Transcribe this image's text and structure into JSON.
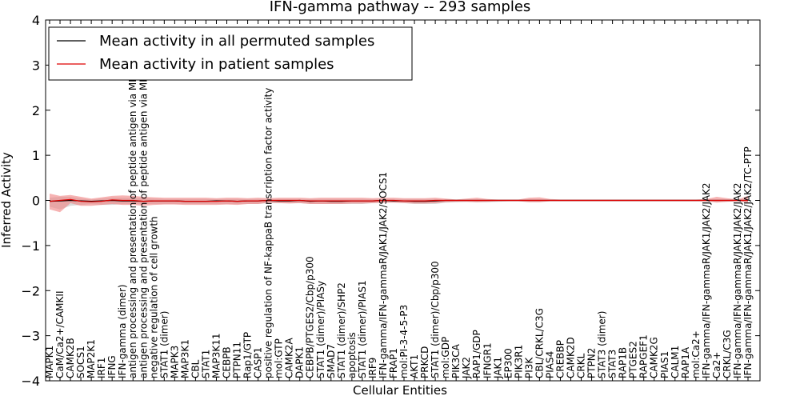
{
  "chart_data": {
    "type": "line",
    "title": "IFN-gamma pathway -- 293 samples",
    "xlabel": "Cellular Entities",
    "ylabel": "Inferred Activity",
    "ylim": [
      -4,
      4
    ],
    "yticks": [
      -4,
      -3,
      -2,
      -1,
      0,
      1,
      2,
      3,
      4
    ],
    "ytick_labels": [
      "−4",
      "−3",
      "−2",
      "−1",
      "0",
      "1",
      "2",
      "3",
      "4"
    ],
    "grid": false,
    "legend_position": "top-left",
    "categories": [
      "MAPK1",
      "CaM/Ca2+/CAMKII",
      "CAMK2B",
      "SOCS1",
      "MAP2K1",
      "IRF1",
      "IFNG",
      "IFN-gamma (dimer)",
      "antigen processing and presentation of peptide antigen via MHC class I",
      "antigen processing and presentation of peptide antigen via MHC class II",
      "negative regulation of cell growth",
      "STAT1 (dimer)",
      "MAPK3",
      "MAP3K1",
      "CBL",
      "STAT1",
      "MAP3K11",
      "CEBPB",
      "PTPN11",
      "Rap1/GTP",
      "CASP1",
      "positive regulation of NF-kappaB transcription factor activity",
      "mol:GTP",
      "CAMK2A",
      "DAPK1",
      "CEBPB/PTGES2/Cbp/p300",
      "STAT1 (dimer)/PIASy",
      "SMAD7",
      "STAT1 (dimer)/SHP2",
      "apoptosis",
      "STAT1 (dimer)/PIAS1",
      "IRF9",
      "IFN-gamma/IFN-gammaR/JAK1/JAK2/SOCS1",
      "FRAP1",
      "mol:PI-3-4-5-P3",
      "AKT1",
      "PRKCD",
      "STAT1 (dimer)/Cbp/p300",
      "mol:GDP",
      "PIK3CA",
      "JAK2",
      "RAP1/GDP",
      "IFNGR1",
      "JAK1",
      "EP300",
      "PIK3R1",
      "PI3K",
      "CBL/CRKL/C3G",
      "PIAS4",
      "CREBBP",
      "CAMK2D",
      "CRKL",
      "PTPN2",
      "STAT3 (dimer)",
      "STAT3",
      "RAP1B",
      "PTGES2",
      "RAPGEF1",
      "CAMK2G",
      "PIAS1",
      "CALM1",
      "RAP1A",
      "mol:Ca2+",
      "IFN-gamma/IFN-gammaR/JAK1/JAK2/JAK2",
      "Ca2+",
      "CRKL/C3G",
      "IFN-gamma/IFN-gammaR/JAK1/JAK2/JAK2",
      "IFN-gamma/IFN-gammaR/JAK1/JAK2/JAK2/TC-PTP"
    ],
    "series": [
      {
        "name": "Mean activity in all permuted samples",
        "color": "#000000",
        "band_color": "#cccccc",
        "values": [
          -0.02,
          -0.01,
          0.0,
          -0.01,
          -0.02,
          -0.01,
          0.0,
          -0.01,
          -0.01,
          -0.02,
          -0.01,
          -0.01,
          -0.01,
          -0.02,
          -0.02,
          -0.02,
          -0.01,
          -0.01,
          -0.02,
          -0.01,
          -0.01,
          0.0,
          -0.01,
          -0.01,
          0.0,
          -0.02,
          -0.01,
          -0.02,
          -0.02,
          -0.01,
          -0.01,
          -0.01,
          0.0,
          -0.01,
          -0.01,
          -0.02,
          -0.02,
          -0.01,
          0.0,
          0.0,
          0.0,
          0.0,
          0.0,
          0.0,
          0.0,
          0.0,
          0.0,
          0.0,
          0.0,
          0.0,
          0.0,
          0.0,
          0.0,
          0.0,
          0.0,
          0.0,
          0.0,
          0.0,
          0.0,
          0.0,
          0.0,
          0.0,
          0.0,
          0.0,
          0.0,
          0.0,
          0.0,
          0.0
        ],
        "upper": [
          0.06,
          0.08,
          0.08,
          0.04,
          0.02,
          0.04,
          0.06,
          0.06,
          0.05,
          0.05,
          0.04,
          0.03,
          0.03,
          0.03,
          0.03,
          0.03,
          0.03,
          0.03,
          0.03,
          0.03,
          0.03,
          0.03,
          0.03,
          0.03,
          0.03,
          0.03,
          0.03,
          0.03,
          0.03,
          0.03,
          0.03,
          0.03,
          0.03,
          0.03,
          0.03,
          0.03,
          0.03,
          0.03,
          0.02,
          0.02,
          0.02,
          0.02,
          0.02,
          0.02,
          0.02,
          0.02,
          0.02,
          0.02,
          0.02,
          0.02,
          0.02,
          0.02,
          0.02,
          0.02,
          0.02,
          0.02,
          0.02,
          0.02,
          0.02,
          0.02,
          0.02,
          0.02,
          0.02,
          0.02,
          0.02,
          0.02,
          0.02,
          0.02
        ],
        "lower": [
          -0.14,
          -0.2,
          -0.12,
          -0.1,
          -0.08,
          -0.1,
          -0.1,
          -0.08,
          -0.08,
          -0.08,
          -0.08,
          -0.08,
          -0.08,
          -0.08,
          -0.08,
          -0.08,
          -0.08,
          -0.08,
          -0.08,
          -0.08,
          -0.08,
          -0.06,
          -0.06,
          -0.06,
          -0.06,
          -0.08,
          -0.08,
          -0.08,
          -0.08,
          -0.08,
          -0.08,
          -0.06,
          -0.05,
          -0.05,
          -0.06,
          -0.08,
          -0.08,
          -0.08,
          -0.05,
          -0.04,
          -0.03,
          -0.04,
          -0.04,
          -0.03,
          -0.02,
          -0.02,
          -0.03,
          -0.03,
          -0.02,
          -0.02,
          -0.02,
          -0.02,
          -0.02,
          -0.02,
          -0.02,
          -0.02,
          -0.02,
          -0.02,
          -0.02,
          -0.02,
          -0.02,
          -0.02,
          -0.02,
          -0.02,
          -0.02,
          -0.02,
          -0.02,
          -0.02
        ]
      },
      {
        "name": "Mean activity in patient samples",
        "color": "#dd0000",
        "band_color": "#f08080",
        "values": [
          -0.02,
          0.0,
          0.02,
          -0.02,
          -0.03,
          -0.02,
          0.01,
          0.0,
          0.0,
          -0.02,
          -0.01,
          -0.01,
          -0.01,
          -0.02,
          -0.02,
          -0.02,
          -0.02,
          -0.01,
          -0.02,
          -0.01,
          -0.01,
          0.0,
          0.0,
          0.0,
          0.0,
          -0.01,
          -0.01,
          -0.01,
          -0.01,
          -0.01,
          -0.01,
          -0.01,
          0.0,
          0.0,
          -0.01,
          -0.01,
          -0.01,
          0.0,
          0.0,
          0.0,
          0.0,
          0.0,
          0.0,
          0.0,
          0.0,
          0.0,
          0.0,
          0.0,
          0.0,
          0.0,
          0.0,
          0.0,
          0.0,
          0.0,
          0.0,
          0.0,
          0.0,
          0.0,
          0.0,
          0.0,
          0.0,
          0.0,
          0.0,
          0.0,
          0.0,
          0.0,
          0.0,
          0.0
        ],
        "upper": [
          0.15,
          0.1,
          0.12,
          0.08,
          0.04,
          0.07,
          0.1,
          0.11,
          0.1,
          0.08,
          0.07,
          0.06,
          0.06,
          0.06,
          0.06,
          0.06,
          0.05,
          0.06,
          0.06,
          0.05,
          0.06,
          0.05,
          0.06,
          0.06,
          0.06,
          0.05,
          0.06,
          0.06,
          0.06,
          0.06,
          0.06,
          0.05,
          0.06,
          0.06,
          0.05,
          0.05,
          0.05,
          0.06,
          0.04,
          0.02,
          0.04,
          0.06,
          0.03,
          0.02,
          0.02,
          0.02,
          0.06,
          0.07,
          0.03,
          0.02,
          0.02,
          0.02,
          0.02,
          0.02,
          0.02,
          0.02,
          0.02,
          0.02,
          0.02,
          0.02,
          0.02,
          0.02,
          0.02,
          0.03,
          0.08,
          0.05,
          0.02,
          0.1
        ],
        "lower": [
          -0.2,
          -0.26,
          -0.06,
          -0.12,
          -0.12,
          -0.1,
          -0.08,
          -0.1,
          -0.1,
          -0.12,
          -0.1,
          -0.09,
          -0.09,
          -0.1,
          -0.1,
          -0.1,
          -0.1,
          -0.09,
          -0.1,
          -0.08,
          -0.08,
          -0.05,
          -0.06,
          -0.07,
          -0.06,
          -0.08,
          -0.08,
          -0.08,
          -0.08,
          -0.07,
          -0.07,
          -0.06,
          -0.05,
          -0.05,
          -0.06,
          -0.07,
          -0.07,
          -0.06,
          -0.04,
          -0.03,
          -0.03,
          -0.04,
          -0.03,
          -0.02,
          -0.02,
          -0.02,
          -0.04,
          -0.04,
          -0.02,
          -0.02,
          -0.02,
          -0.02,
          -0.02,
          -0.02,
          -0.02,
          -0.02,
          -0.02,
          -0.02,
          -0.02,
          -0.02,
          -0.02,
          -0.02,
          -0.02,
          -0.02,
          -0.05,
          -0.03,
          -0.02,
          -0.05
        ]
      }
    ]
  }
}
